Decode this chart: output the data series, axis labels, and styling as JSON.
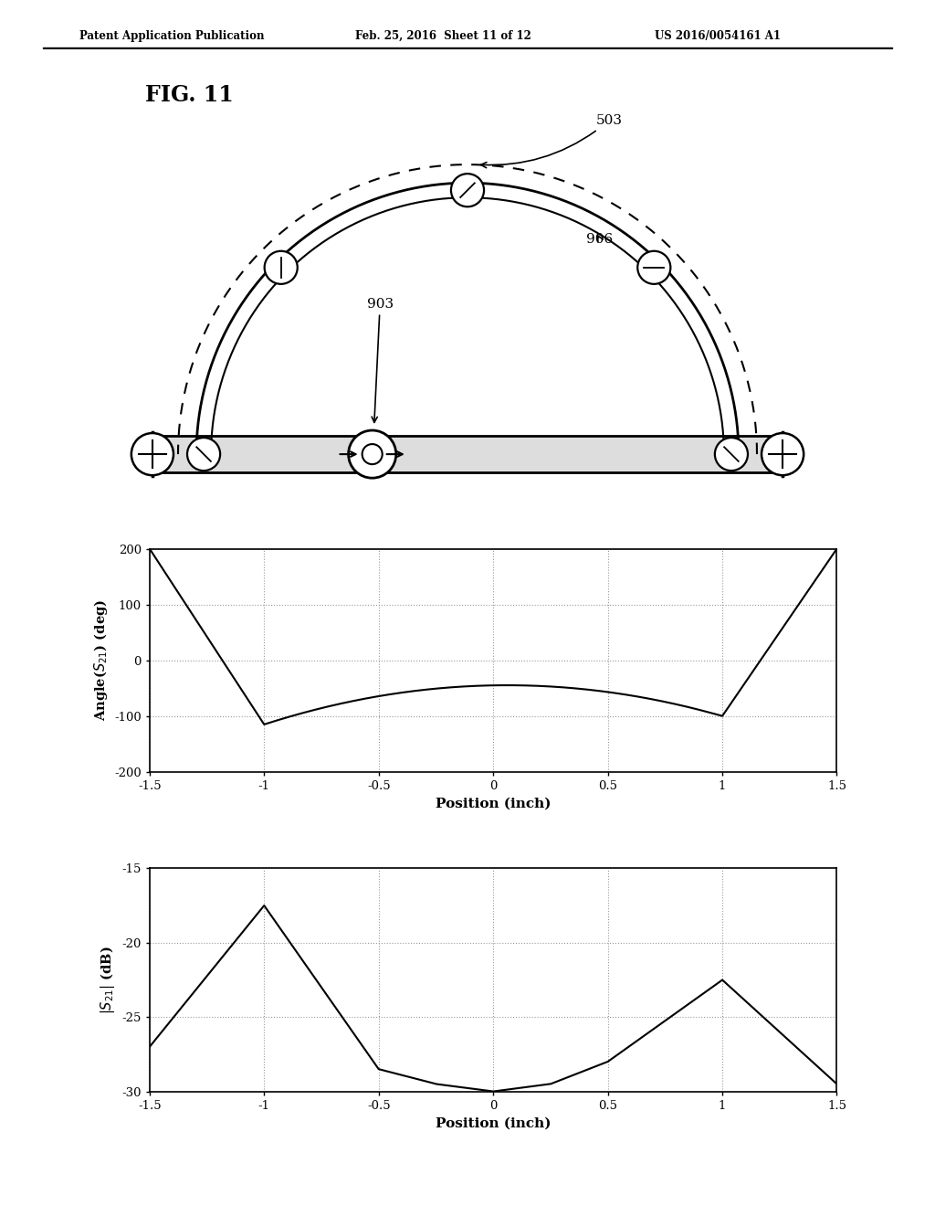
{
  "header_left": "Patent Application Publication",
  "header_center": "Feb. 25, 2016  Sheet 11 of 12",
  "header_right": "US 2016/0054161 A1",
  "fig_label": "FIG. 11",
  "label_503": "503",
  "label_903": "903",
  "label_906": "906",
  "plot1_ylabel": "Angle(S_{21}) (deg)",
  "plot1_xlabel": "Position (inch)",
  "plot1_ylim": [
    -200,
    200
  ],
  "plot1_yticks": [
    -200,
    -100,
    0,
    100,
    200
  ],
  "plot1_xlim": [
    -1.5,
    1.5
  ],
  "plot1_xticks": [
    -1.5,
    -1.0,
    -0.5,
    0.0,
    0.5,
    1.0,
    1.5
  ],
  "plot2_ylabel": "|S_{21}| (dB)",
  "plot2_xlabel": "Position (inch)",
  "plot2_ylim": [
    -30,
    -15
  ],
  "plot2_yticks": [
    -30,
    -25,
    -20,
    -15
  ],
  "plot2_xlim": [
    -1.5,
    1.5
  ],
  "plot2_xticks": [
    -1.5,
    -1.0,
    -0.5,
    0.0,
    0.5,
    1.0,
    1.5
  ],
  "bg_color": "#ffffff",
  "line_color": "#000000",
  "grid_color": "#aaaaaa",
  "angle_x_pts": [
    -1.5,
    -1.0,
    -0.75,
    -0.5,
    -0.25,
    0.0,
    0.25,
    0.5,
    0.75,
    1.0,
    1.5
  ],
  "angle_y_pts": [
    200,
    -115,
    -95,
    -75,
    -55,
    -45,
    -52,
    -70,
    -95,
    -100,
    200
  ],
  "mag_x_pts": [
    -1.5,
    -1.0,
    -0.5,
    -0.25,
    0.0,
    0.25,
    0.5,
    1.0,
    1.5
  ],
  "mag_y_pts": [
    -27.0,
    -17.5,
    -28.5,
    -29.5,
    -30.0,
    -29.5,
    -28.0,
    -22.5,
    -29.5
  ]
}
